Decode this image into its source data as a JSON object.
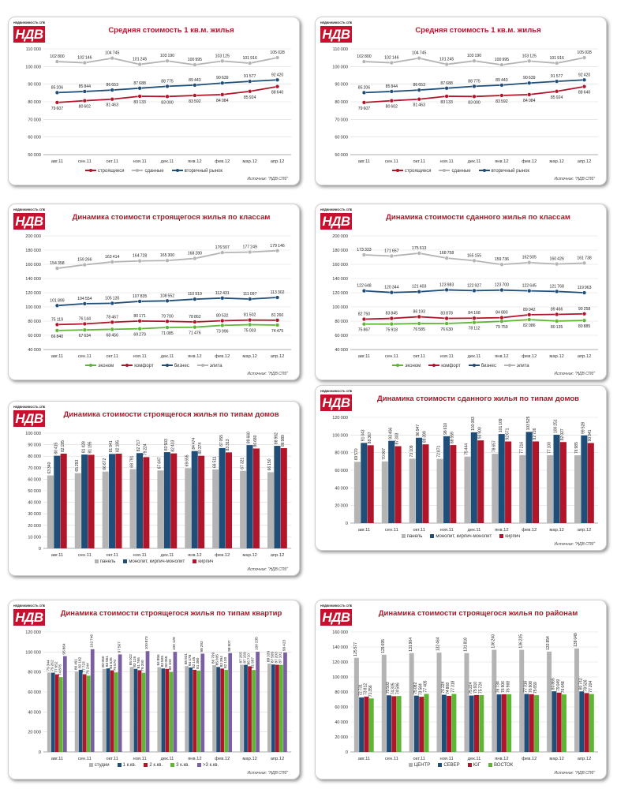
{
  "logo": {
    "top_text": "НЕДВИЖИМОСТЬ СПБ",
    "mark": "НДВ"
  },
  "months": [
    "авг.11",
    "сен.11",
    "окт.11",
    "ноя.11",
    "дек.11",
    "янв.12",
    "фев.12",
    "мар.12",
    "апр.12"
  ],
  "source": "Источник: \"НДВ СПб\"",
  "chart_data": [
    {
      "type": "line",
      "title": "Средняя стоимость 1 кв.м. жилья",
      "ylim": [
        50000,
        110000
      ],
      "yticks": [
        50000,
        60000,
        70000,
        80000,
        90000,
        100000,
        110000
      ],
      "series": [
        {
          "name": "строящиеся",
          "color": "#b0152a",
          "values": [
            79607,
            80602,
            81463,
            83133,
            83000,
            83592,
            84084,
            85924,
            88640
          ]
        },
        {
          "name": "сданные",
          "color": "#b4b4b4",
          "values": [
            102800,
            102146,
            104745,
            101245,
            103190,
            100995,
            103125,
            101916,
            105028
          ]
        },
        {
          "name": "вторичный рынок",
          "color": "#1f4e79",
          "values": [
            85206,
            85844,
            86653,
            87688,
            88775,
            89443,
            90639,
            91577,
            92420
          ]
        }
      ]
    },
    {
      "type": "line",
      "title": "Средняя стоимость 1 кв.м. жилья",
      "ylim": [
        50000,
        110000
      ],
      "yticks": [
        50000,
        60000,
        70000,
        80000,
        90000,
        100000,
        110000
      ],
      "series": [
        {
          "name": "строящиеся",
          "color": "#b0152a",
          "values": [
            79607,
            80602,
            81463,
            83133,
            83000,
            83592,
            84084,
            85924,
            88640
          ]
        },
        {
          "name": "сданные",
          "color": "#b4b4b4",
          "values": [
            102800,
            102146,
            104745,
            101245,
            103190,
            100995,
            103125,
            101916,
            105028
          ]
        },
        {
          "name": "вторичный рынок",
          "color": "#1f4e79",
          "values": [
            85206,
            85844,
            86653,
            87688,
            88775,
            89443,
            90639,
            91577,
            92420
          ]
        }
      ]
    },
    {
      "type": "line",
      "title": "Динамика стоимости строящегося жилья по классам",
      "ylim": [
        40000,
        200000
      ],
      "yticks": [
        40000,
        60000,
        80000,
        100000,
        120000,
        140000,
        160000,
        180000,
        200000
      ],
      "series": [
        {
          "name": "эконом",
          "color": "#5fb534",
          "values": [
            66840,
            67634,
            68456,
            69279,
            71085,
            71476,
            73996,
            75003,
            74475
          ]
        },
        {
          "name": "комфорт",
          "color": "#b0152a",
          "values": [
            75119,
            76144,
            78467,
            80171,
            79700,
            78862,
            80532,
            81502,
            81260
          ]
        },
        {
          "name": "бизнес",
          "color": "#1f4e79",
          "values": [
            101899,
            104554,
            105135,
            107835,
            108552,
            110919,
            112431,
            111097,
            113302
          ]
        },
        {
          "name": "элита",
          "color": "#b4b4b4",
          "values": [
            154358,
            159266,
            163414,
            164728,
            165300,
            168280,
            176507,
            177249,
            179146
          ]
        }
      ]
    },
    {
      "type": "line",
      "title": "Динамика стоимости сданного жилья по классам",
      "ylim": [
        40000,
        200000
      ],
      "yticks": [
        40000,
        60000,
        80000,
        100000,
        120000,
        140000,
        160000,
        180000,
        200000
      ],
      "series": [
        {
          "name": "эконом",
          "color": "#5fb534",
          "values": [
            75867,
            75918,
            76585,
            76630,
            78112,
            79759,
            82086,
            80135,
            80885
          ]
        },
        {
          "name": "комфорт",
          "color": "#b0152a",
          "values": [
            82750,
            83845,
            86193,
            83878,
            84168,
            84880,
            89042,
            89466,
            90258
          ]
        },
        {
          "name": "бизнес",
          "color": "#1f4e79",
          "values": [
            122648,
            120344,
            121403,
            123983,
            122927,
            123700,
            122645,
            121768,
            119963
          ]
        },
        {
          "name": "элита",
          "color": "#b4b4b4",
          "values": [
            173333,
            171657,
            175613,
            168758,
            165155,
            159736,
            162505,
            160426,
            161738
          ]
        }
      ]
    },
    {
      "type": "bar",
      "title": "Динамика стоимости строящегося жилья по типам домов",
      "ylim": [
        0,
        100000
      ],
      "yticks": [
        0,
        10000,
        20000,
        30000,
        40000,
        50000,
        60000,
        70000,
        80000,
        90000,
        100000
      ],
      "series": [
        {
          "name": "панель",
          "color": "#b4b4b4",
          "values": [
            63340,
            65293,
            66672,
            68791,
            67647,
            69655,
            68511,
            67321,
            66150
          ]
        },
        {
          "name": "монолит, кирпич-монолит",
          "color": "#1f4e79",
          "values": [
            80415,
            81428,
            81941,
            82717,
            83503,
            84474,
            87055,
            89660,
            88992
          ]
        },
        {
          "name": "кирпич",
          "color": "#b0152a",
          "values": [
            82195,
            81195,
            82195,
            79224,
            82433,
            80374,
            83313,
            86680,
            86989
          ]
        }
      ]
    },
    {
      "type": "bar",
      "title": "Динамика стоимости сданного жилья по типам домов",
      "ylim": [
        0,
        120000
      ],
      "yticks": [
        0,
        20000,
        40000,
        60000,
        80000,
        100000,
        120000
      ],
      "series": [
        {
          "name": "панель",
          "color": "#b4b4b4",
          "values": [
            69570,
            70007,
            73109,
            72871,
            75444,
            78657,
            77216,
            77100,
            76985
          ]
        },
        {
          "name": "монолит, кирпич-монолит",
          "color": "#1f4e79",
          "values": [
            91043,
            93406,
            96947,
            98610,
            103083,
            101109,
            103525,
            100251,
            99528
          ]
        },
        {
          "name": "кирпич",
          "color": "#b0152a",
          "values": [
            88367,
            87303,
            89399,
            88559,
            93900,
            92671,
            92726,
            92027,
            90941
          ]
        }
      ]
    },
    {
      "type": "bar",
      "title": "Динамика стоимости строящегося жилья по типам квартир",
      "ylim": [
        0,
        120000
      ],
      "yticks": [
        0,
        20000,
        40000,
        60000,
        80000,
        100000,
        120000
      ],
      "series": [
        {
          "name": "студии",
          "color": "#b4b4b4",
          "values": [
            79344,
            80491,
            83050,
            85022,
            84856,
            85931,
            86799,
            87265,
            88339
          ]
        },
        {
          "name": "1 к.кв.",
          "color": "#1f4e79",
          "values": [
            79262,
            82182,
            83551,
            83115,
            83505,
            84478,
            85005,
            87159,
            87509
          ]
        },
        {
          "name": "2 к.кв.",
          "color": "#b0152a",
          "values": [
            77652,
            77723,
            81635,
            81765,
            83055,
            82145,
            83394,
            85710,
            87203
          ]
        },
        {
          "name": "3 к.кв.",
          "color": "#5fb534",
          "values": [
            74876,
            76244,
            79570,
            79200,
            80103,
            81380,
            82130,
            81997,
            87101
          ]
        },
        {
          "name": ">3 к.кв.",
          "color": "#7b5fa3",
          "values": [
            95864,
            102746,
            97567,
            100873,
            100129,
            98292,
            98907,
            100235,
            99423
          ]
        }
      ]
    },
    {
      "type": "bar",
      "title": "Динамика стоимости строящегося жилья по районам",
      "ylim": [
        0,
        160000
      ],
      "yticks": [
        0,
        20000,
        40000,
        60000,
        80000,
        100000,
        120000,
        140000,
        160000
      ],
      "series": [
        {
          "name": "ЦЕНТР",
          "color": "#b4b4b4",
          "values": [
            125577,
            129695,
            131904,
            132464,
            131818,
            136240,
            136235,
            133854,
            138049
          ]
        },
        {
          "name": "СЕВЕР",
          "color": "#1f4e79",
          "values": [
            72731,
            75503,
            75082,
            76224,
            75224,
            76734,
            77316,
            80865,
            80742
          ]
        },
        {
          "name": "ЮГ",
          "color": "#b0152a",
          "values": [
            73812,
            74335,
            73584,
            74808,
            75910,
            76906,
            76908,
            79049,
            78526
          ]
        },
        {
          "name": "ВОСТОК",
          "color": "#5fb534",
          "values": [
            71356,
            74596,
            77405,
            77318,
            75724,
            76968,
            75659,
            76648,
            77204
          ]
        }
      ]
    }
  ]
}
